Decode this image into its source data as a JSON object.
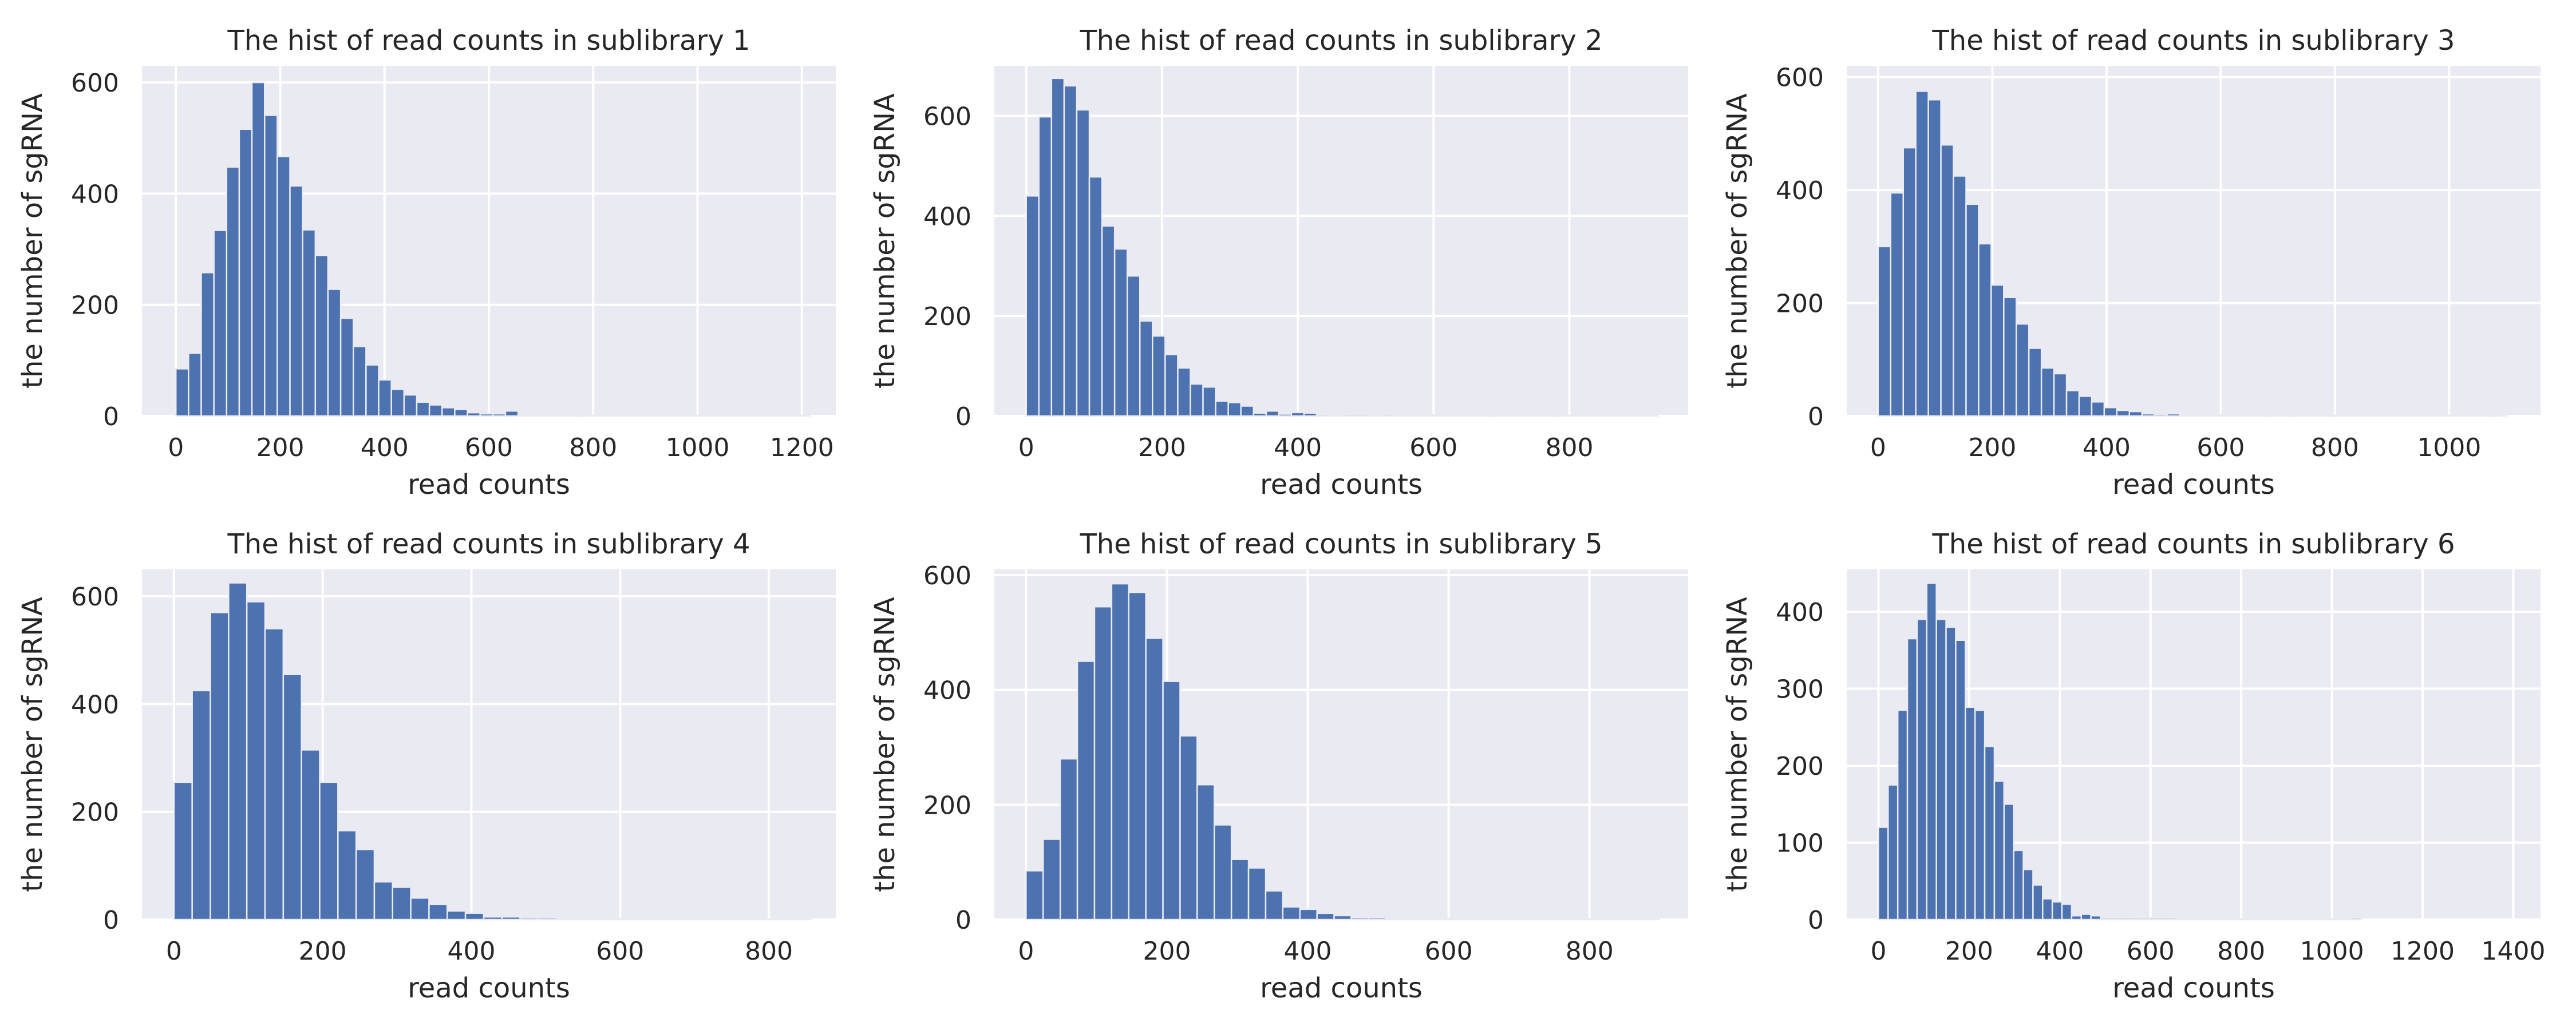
{
  "colors": {
    "bar": "#4c72b0",
    "plot_background": "#eaeaf2",
    "grid": "#ffffff",
    "text": "#262626"
  },
  "chart_data": [
    {
      "type": "bar",
      "title": "The hist of read counts in sublibrary 1",
      "xlabel": "read counts",
      "ylabel": "the number of sgRNA",
      "xlim": [
        -65,
        1265
      ],
      "ylim": [
        0,
        630
      ],
      "xticks": [
        0,
        200,
        400,
        600,
        800,
        1000,
        1200
      ],
      "yticks": [
        0,
        200,
        400,
        600
      ],
      "grid": true,
      "bin_start": 0,
      "bin_width": 24.3,
      "values": [
        85,
        113,
        258,
        334,
        448,
        516,
        600,
        541,
        467,
        414,
        335,
        289,
        228,
        176,
        125,
        92,
        65,
        48,
        38,
        25,
        20,
        15,
        12,
        6,
        4,
        4,
        9,
        2,
        2,
        2,
        1,
        2,
        1,
        1,
        1,
        1,
        1,
        1,
        2,
        1,
        1,
        1,
        1,
        1,
        1,
        1,
        1,
        1,
        1,
        1
      ]
    },
    {
      "type": "bar",
      "title": "The hist of read counts in sublibrary 2",
      "xlabel": "read counts",
      "ylabel": "the number of sgRNA",
      "xlim": [
        -47,
        975
      ],
      "ylim": [
        0,
        700
      ],
      "xticks": [
        0,
        200,
        400,
        600,
        800
      ],
      "yticks": [
        0,
        200,
        400,
        600
      ],
      "grid": true,
      "bin_start": 0,
      "bin_width": 18.6,
      "values": [
        440,
        598,
        675,
        660,
        612,
        478,
        380,
        334,
        280,
        190,
        160,
        123,
        96,
        64,
        58,
        30,
        27,
        20,
        6,
        10,
        4,
        7,
        6,
        3,
        2,
        3,
        3,
        2,
        3,
        2,
        2,
        2,
        2,
        1,
        1,
        1,
        1,
        1,
        1,
        1,
        1,
        1,
        1,
        1,
        1,
        1,
        1,
        1,
        1,
        1
      ]
    },
    {
      "type": "bar",
      "title": "The hist of read counts in sublibrary 3",
      "xlabel": "read counts",
      "ylabel": "the number of sgRNA",
      "xlim": [
        -55,
        1160
      ],
      "ylim": [
        0,
        620
      ],
      "xticks": [
        0,
        200,
        400,
        600,
        800,
        1000
      ],
      "yticks": [
        0,
        200,
        400,
        600
      ],
      "grid": true,
      "bin_start": 0,
      "bin_width": 22,
      "values": [
        300,
        395,
        475,
        575,
        560,
        480,
        425,
        375,
        305,
        232,
        210,
        163,
        120,
        85,
        75,
        45,
        35,
        25,
        15,
        10,
        8,
        4,
        3,
        4,
        2,
        2,
        2,
        2,
        2,
        2,
        1,
        1,
        1,
        1,
        1,
        1,
        1,
        1,
        2,
        1,
        1,
        1,
        1,
        1,
        1,
        1,
        1,
        1,
        1,
        1
      ]
    },
    {
      "type": "bar",
      "title": "The hist of read counts in sublibrary 4",
      "xlabel": "read counts",
      "ylabel": "the number of sgRNA",
      "xlim": [
        -43,
        890
      ],
      "ylim": [
        0,
        650
      ],
      "xticks": [
        0,
        200,
        400,
        600,
        800
      ],
      "yticks": [
        0,
        200,
        400,
        600
      ],
      "grid": true,
      "bin_start": 0,
      "bin_width": 24.5,
      "values": [
        255,
        425,
        570,
        625,
        590,
        540,
        455,
        315,
        255,
        165,
        130,
        70,
        60,
        40,
        28,
        16,
        12,
        5,
        5,
        3,
        3,
        2,
        2,
        2,
        2,
        2,
        2,
        2,
        1,
        1,
        1,
        1,
        1,
        1,
        1
      ]
    },
    {
      "type": "bar",
      "title": "The hist of read counts in sublibrary 5",
      "xlabel": "read counts",
      "ylabel": "the number of sgRNA",
      "xlim": [
        -45,
        940
      ],
      "ylim": [
        0,
        610
      ],
      "xticks": [
        0,
        200,
        400,
        600,
        800
      ],
      "yticks": [
        0,
        200,
        400,
        600
      ],
      "grid": true,
      "bin_start": 0,
      "bin_width": 24.3,
      "values": [
        85,
        140,
        280,
        450,
        545,
        585,
        570,
        490,
        415,
        320,
        235,
        165,
        105,
        90,
        50,
        22,
        18,
        11,
        7,
        3,
        3,
        2,
        2,
        2,
        2,
        2,
        2,
        2,
        2,
        2,
        1,
        1,
        1,
        1,
        1,
        1,
        1
      ]
    },
    {
      "type": "bar",
      "title": "The hist of read counts in sublibrary 6",
      "xlabel": "read counts",
      "ylabel": "the number of sgRNA",
      "xlim": [
        -70,
        1460
      ],
      "ylim": [
        0,
        455
      ],
      "xticks": [
        0,
        200,
        400,
        600,
        800,
        1000,
        1200,
        1400
      ],
      "yticks": [
        0,
        100,
        200,
        300,
        400
      ],
      "grid": true,
      "bin_start": 0,
      "bin_width": 21.3,
      "values": [
        120,
        175,
        272,
        365,
        390,
        437,
        390,
        380,
        363,
        276,
        272,
        225,
        180,
        150,
        90,
        65,
        45,
        27,
        23,
        20,
        5,
        7,
        5,
        2,
        2,
        2,
        2,
        2,
        2,
        2,
        2,
        1,
        1,
        1,
        1,
        1,
        1,
        1,
        1,
        1,
        1,
        1,
        1,
        1,
        1,
        1,
        1,
        1,
        1,
        2
      ]
    }
  ]
}
